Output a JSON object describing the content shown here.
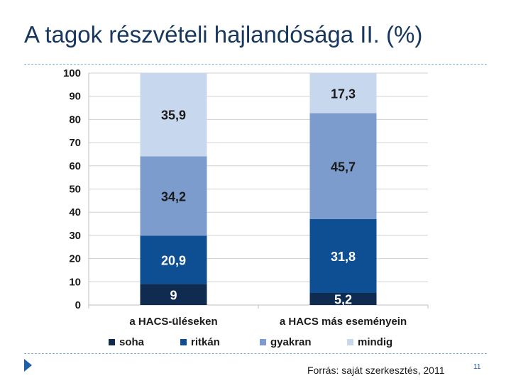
{
  "slide": {
    "title": "A tagok részvételi hajlandósága II. (%)",
    "source": "Forrás: saját szerkesztés, 2011",
    "page_number": "11"
  },
  "colors": {
    "title": "#17375e",
    "rule": "#7fb3d9",
    "bullet": "#1f5fa6"
  },
  "chart_data": {
    "type": "bar",
    "stacked": true,
    "categories": [
      "a HACS-üléseken",
      "a HACS más eseményein"
    ],
    "series": [
      {
        "name": "soha",
        "values": [
          9,
          5.2
        ],
        "color": "#0f2b4f",
        "label_color": "#ffffff"
      },
      {
        "name": "ritkán",
        "values": [
          20.9,
          31.8
        ],
        "color": "#0e4f93",
        "label_color": "#ffffff"
      },
      {
        "name": "gyakran",
        "values": [
          34.2,
          45.7
        ],
        "color": "#7b9ccc",
        "label_color": "#1a1a1a"
      },
      {
        "name": "mindig",
        "values": [
          35.9,
          17.3
        ],
        "color": "#c7d8ee",
        "label_color": "#1a1a1a"
      }
    ],
    "value_labels": [
      [
        "9",
        "20,9",
        "34,2",
        "35,9"
      ],
      [
        "5,2",
        "31,8",
        "45,7",
        "17,3"
      ]
    ],
    "ylim": [
      0,
      100
    ],
    "yticks": [
      0,
      10,
      20,
      30,
      40,
      50,
      60,
      70,
      80,
      90,
      100
    ],
    "grid": true,
    "legend": "bottom"
  }
}
